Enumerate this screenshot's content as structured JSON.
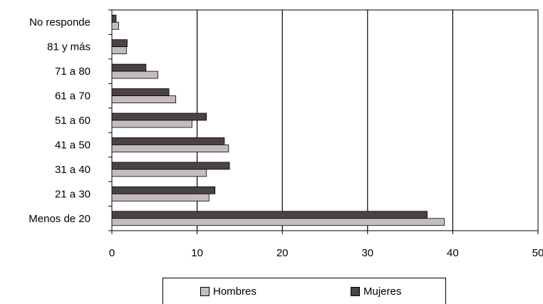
{
  "chart_data": {
    "type": "bar",
    "orientation": "horizontal",
    "categories": [
      "Menos de 20",
      "21 a 30",
      "31 a 40",
      "41 a 50",
      "51 a 60",
      "61 a 70",
      "71 a 80",
      "81 y más",
      "No responde"
    ],
    "series": [
      {
        "name": "Hombres",
        "color": "#c4bdbd",
        "values": [
          39,
          11.4,
          11.1,
          13.7,
          9.4,
          7.5,
          5.4,
          1.7,
          0.8
        ]
      },
      {
        "name": "Mujeres",
        "color": "#4a4244",
        "values": [
          37,
          12.1,
          13.8,
          13.2,
          11.1,
          6.7,
          4.0,
          1.8,
          0.5
        ]
      }
    ],
    "xlim": [
      0,
      50
    ],
    "xticks": [
      "0",
      "10",
      "20",
      "30",
      "40",
      "50"
    ],
    "grid": "vertical",
    "legend_position": "bottom",
    "title": "",
    "xlabel": "",
    "ylabel": ""
  }
}
